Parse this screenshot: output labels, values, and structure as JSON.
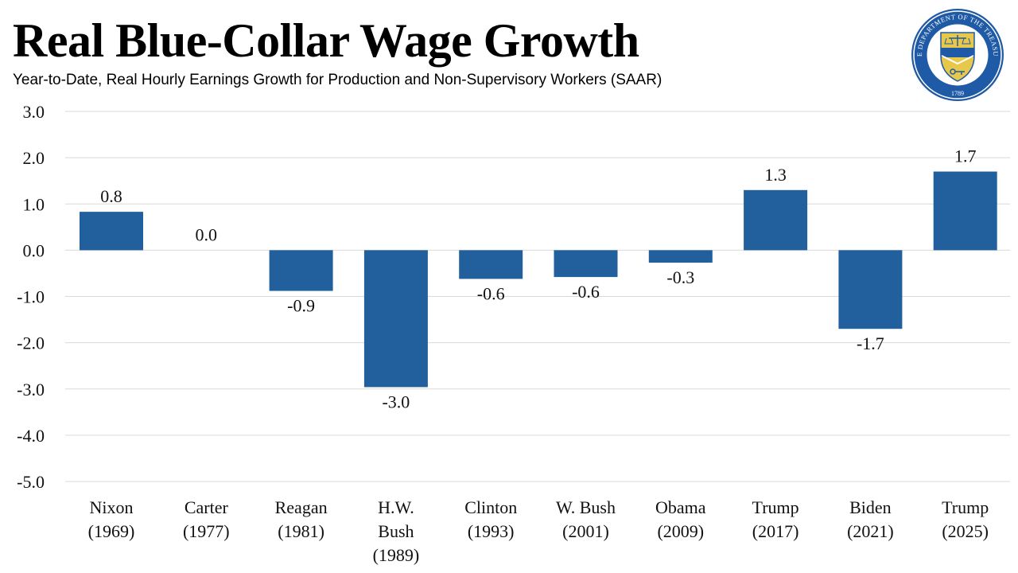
{
  "header": {
    "title": "Real Blue-Collar Wage Growth",
    "subtitle": "Year-to-Date, Real Hourly Earnings Growth for Production and Non-Supervisory Workers (SAAR)"
  },
  "logo": {
    "name": "department-of-the-treasury-seal",
    "ring_text": "THE DEPARTMENT OF THE TREASURY",
    "year": "1789"
  },
  "colors": {
    "bar": "#22609d",
    "grid": "#d9d9d9",
    "seal_ring": "#1f5aa6",
    "seal_shield": "#e8c84a"
  },
  "chart_data": {
    "type": "bar",
    "title": "Real Blue-Collar Wage Growth",
    "subtitle": "Year-to-Date, Real Hourly Earnings Growth for Production and Non-Supervisory Workers (SAAR)",
    "xlabel": "",
    "ylabel": "",
    "ylim": [
      -5,
      3
    ],
    "yticks": [
      3,
      2,
      1,
      0,
      -1,
      -2,
      -3,
      -4,
      -5
    ],
    "ytick_labels": [
      "3.0",
      "2.0",
      "1.0",
      "0.0",
      "-1.0",
      "-2.0",
      "-3.0",
      "-4.0",
      "-5.0"
    ],
    "grid": true,
    "categories": [
      [
        "Nixon",
        "(1969)"
      ],
      [
        "Carter",
        "(1977)"
      ],
      [
        "Reagan",
        "(1981)"
      ],
      [
        "H.W.",
        "Bush",
        "(1989)"
      ],
      [
        "Clinton",
        "(1993)"
      ],
      [
        "W. Bush",
        "(2001)"
      ],
      [
        "Obama",
        "(2009)"
      ],
      [
        "Trump",
        "(2017)"
      ],
      [
        "Biden",
        "(2021)"
      ],
      [
        "Trump",
        "(2025)"
      ]
    ],
    "values": [
      0.8,
      0.0,
      -0.9,
      -3.0,
      -0.6,
      -0.6,
      -0.3,
      1.3,
      -1.7,
      1.7
    ],
    "bar_values": [
      0.83,
      0.0,
      -0.88,
      -2.96,
      -0.62,
      -0.58,
      -0.27,
      1.3,
      -1.7,
      1.7
    ],
    "value_labels": [
      "0.8",
      "0.0",
      "-0.9",
      "-3.0",
      "-0.6",
      "-0.6",
      "-0.3",
      "1.3",
      "-1.7",
      "1.7"
    ]
  }
}
